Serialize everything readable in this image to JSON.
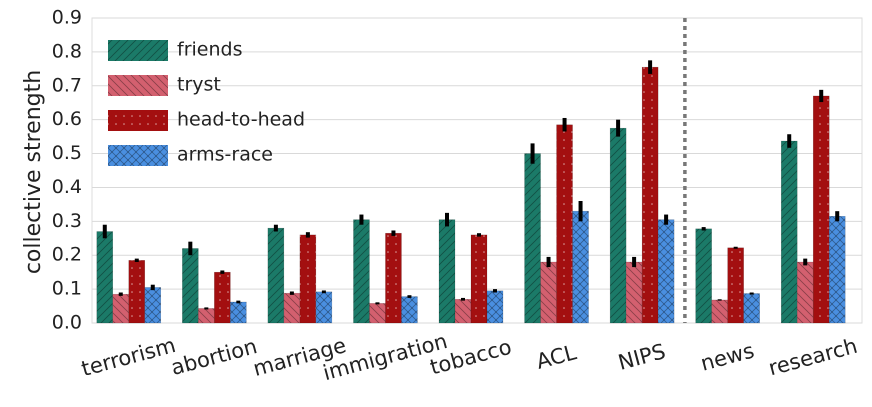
{
  "chart_data": {
    "type": "bar",
    "ylabel": "collective strength",
    "categories": [
      "terrorism",
      "abortion",
      "marriage",
      "immigration",
      "tobacco",
      "ACL",
      "NIPS",
      "news",
      "research"
    ],
    "series": [
      {
        "name": "friends",
        "color": "#1b7a68",
        "hatch": "/",
        "values": [
          0.27,
          0.22,
          0.28,
          0.305,
          0.305,
          0.5,
          0.575,
          0.278,
          0.537
        ],
        "errors": [
          0.02,
          0.02,
          0.01,
          0.015,
          0.02,
          0.03,
          0.025,
          0.005,
          0.02
        ]
      },
      {
        "name": "tryst",
        "color": "#d3606f",
        "hatch": "\\",
        "values": [
          0.085,
          0.043,
          0.088,
          0.058,
          0.07,
          0.18,
          0.18,
          0.068,
          0.18
        ],
        "errors": [
          0.005,
          0.003,
          0.005,
          0.003,
          0.004,
          0.015,
          0.015,
          0.002,
          0.01
        ]
      },
      {
        "name": "head-to-head",
        "color": "#a30f10",
        "hatch": ".",
        "values": [
          0.185,
          0.15,
          0.26,
          0.265,
          0.26,
          0.585,
          0.755,
          0.222,
          0.67
        ],
        "errors": [
          0.005,
          0.005,
          0.008,
          0.008,
          0.005,
          0.02,
          0.02,
          0.003,
          0.018
        ]
      },
      {
        "name": "arms-race",
        "color": "#4a8fe0",
        "hatch": "x",
        "values": [
          0.105,
          0.062,
          0.092,
          0.078,
          0.095,
          0.33,
          0.305,
          0.087,
          0.315
        ],
        "errors": [
          0.008,
          0.004,
          0.004,
          0.004,
          0.005,
          0.03,
          0.015,
          0.003,
          0.015
        ]
      }
    ],
    "ylim": [
      0,
      0.9
    ],
    "yticks": [
      {
        "value": 0,
        "label": "0.0"
      },
      0.1,
      0.2,
      0.3,
      0.4,
      0.5,
      0.6,
      0.7,
      0.8,
      0.9
    ],
    "grid": true,
    "legend": "upper left"
  }
}
